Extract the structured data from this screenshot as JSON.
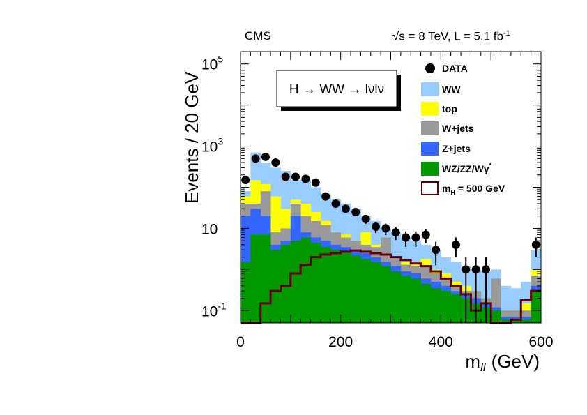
{
  "header": {
    "experiment": "CMS",
    "energy_lumi": "√s = 8 TeV, L = 5.1 fb",
    "lumi_exponent": "-1"
  },
  "chart_data": {
    "type": "bar",
    "stacked": true,
    "log_y": true,
    "annotation": "H → WW → lνlν",
    "xlabel": "m",
    "xlabel_subscript": "ll",
    "xlabel_unit": "(GeV)",
    "ylabel": "Events / 20 GeV",
    "xlim": [
      0,
      600
    ],
    "ylim": [
      0.05,
      200000
    ],
    "x_ticks": [
      "0",
      "200",
      "400",
      "600"
    ],
    "y_ticks": [
      {
        "base": "10",
        "exp": "-1",
        "value": 0.1
      },
      {
        "base": "10",
        "exp": "",
        "value": 10
      },
      {
        "base": "10",
        "exp": "3",
        "value": 1000
      },
      {
        "base": "10",
        "exp": "5",
        "value": 100000
      }
    ],
    "legend_position": "top-right",
    "bin_edges": [
      0,
      20,
      40,
      60,
      80,
      100,
      120,
      140,
      160,
      180,
      200,
      220,
      240,
      260,
      280,
      300,
      320,
      340,
      360,
      380,
      400,
      420,
      440,
      460,
      480,
      500,
      520,
      540,
      560,
      580,
      600
    ],
    "colors": {
      "WZ/ZZ/Wγ*": "#009900",
      "Z+jets": "#3366ff",
      "W+jets": "#999999",
      "top": "#ffff00",
      "WW": "#99ccff",
      "signal": "#660000",
      "data": "#000000"
    },
    "stack_cumulative": [
      {
        "name": "WZ/ZZ/Wγ*",
        "values": [
          1.5,
          7,
          7,
          3,
          4,
          5,
          6,
          4.5,
          3.5,
          3,
          2.6,
          2.2,
          1.8,
          1.5,
          1.2,
          0.9,
          0.7,
          0.6,
          0.45,
          0.35,
          0.3,
          0.25,
          0.2,
          0.15,
          0.12,
          0.1,
          0.06,
          0.06,
          0.06,
          0.3
        ]
      },
      {
        "name": "Z+jets",
        "values": [
          20,
          30,
          20,
          4,
          5,
          20,
          8,
          6,
          5,
          4,
          3.5,
          3,
          2.5,
          2,
          1.5,
          1.2,
          0.9,
          0.8,
          0.6,
          0.5,
          0.4,
          0.3,
          0.25,
          0.2,
          0.15,
          0.12,
          0.07,
          0.07,
          0.07,
          0.4
        ]
      },
      {
        "name": "W+jets",
        "values": [
          40,
          40,
          80,
          8,
          10,
          40,
          20,
          15,
          12,
          8,
          6,
          5,
          4,
          3.5,
          6,
          2,
          1.3,
          1.2,
          1.2,
          0.8,
          0.6,
          0.4,
          0.3,
          0.3,
          0.2,
          0.6,
          0.1,
          0.1,
          0.1,
          0.7
        ]
      },
      {
        "name": "top",
        "values": [
          60,
          150,
          120,
          60,
          30,
          50,
          40,
          25,
          15,
          8,
          7,
          5,
          8,
          4,
          3,
          2,
          1.5,
          1.5,
          1.8,
          1,
          0.8,
          0.5,
          0.4,
          0.3,
          0.15,
          0.15,
          0.1,
          0.1,
          0.15,
          1
        ]
      },
      {
        "name": "WW",
        "values": [
          80,
          700,
          400,
          300,
          250,
          150,
          150,
          100,
          70,
          50,
          40,
          30,
          20,
          15,
          10,
          8,
          6,
          5,
          4,
          3,
          2,
          1.5,
          1.2,
          1,
          0.9,
          1,
          0.4,
          0.35,
          0.5,
          3
        ]
      }
    ],
    "signal": {
      "name": "m_H = 500 GeV",
      "values": [
        0.05,
        0.05,
        0.15,
        0.3,
        0.4,
        0.8,
        1.3,
        2,
        2.3,
        2.5,
        2.7,
        2.9,
        2.7,
        2.5,
        2.3,
        2,
        1.7,
        1.4,
        1.2,
        0.9,
        0.6,
        0.4,
        0.25,
        0.1,
        0.15,
        0.05,
        0.05,
        0.06,
        0.18,
        0.3
      ]
    },
    "data": {
      "name": "DATA",
      "x": [
        10,
        30,
        50,
        70,
        90,
        110,
        130,
        150,
        170,
        190,
        210,
        230,
        250,
        270,
        290,
        310,
        330,
        350,
        370,
        390,
        430,
        450,
        470,
        490,
        590
      ],
      "y": [
        150,
        500,
        550,
        400,
        180,
        180,
        160,
        130,
        60,
        40,
        30,
        25,
        17,
        11,
        10,
        8,
        6,
        6,
        7,
        3,
        4,
        1,
        1,
        1,
        4
      ]
    },
    "legend": [
      {
        "label": "DATA",
        "kind": "marker"
      },
      {
        "label": "WW",
        "kind": "fill"
      },
      {
        "label": "top",
        "kind": "fill"
      },
      {
        "label": "W+jets",
        "kind": "fill"
      },
      {
        "label": "Z+jets",
        "kind": "fill"
      },
      {
        "label": "WZ/ZZ/Wγ",
        "sup": "*",
        "kind": "fill"
      },
      {
        "label": "m",
        "sub": "H",
        "tail": " = 500 GeV",
        "kind": "line"
      }
    ]
  }
}
